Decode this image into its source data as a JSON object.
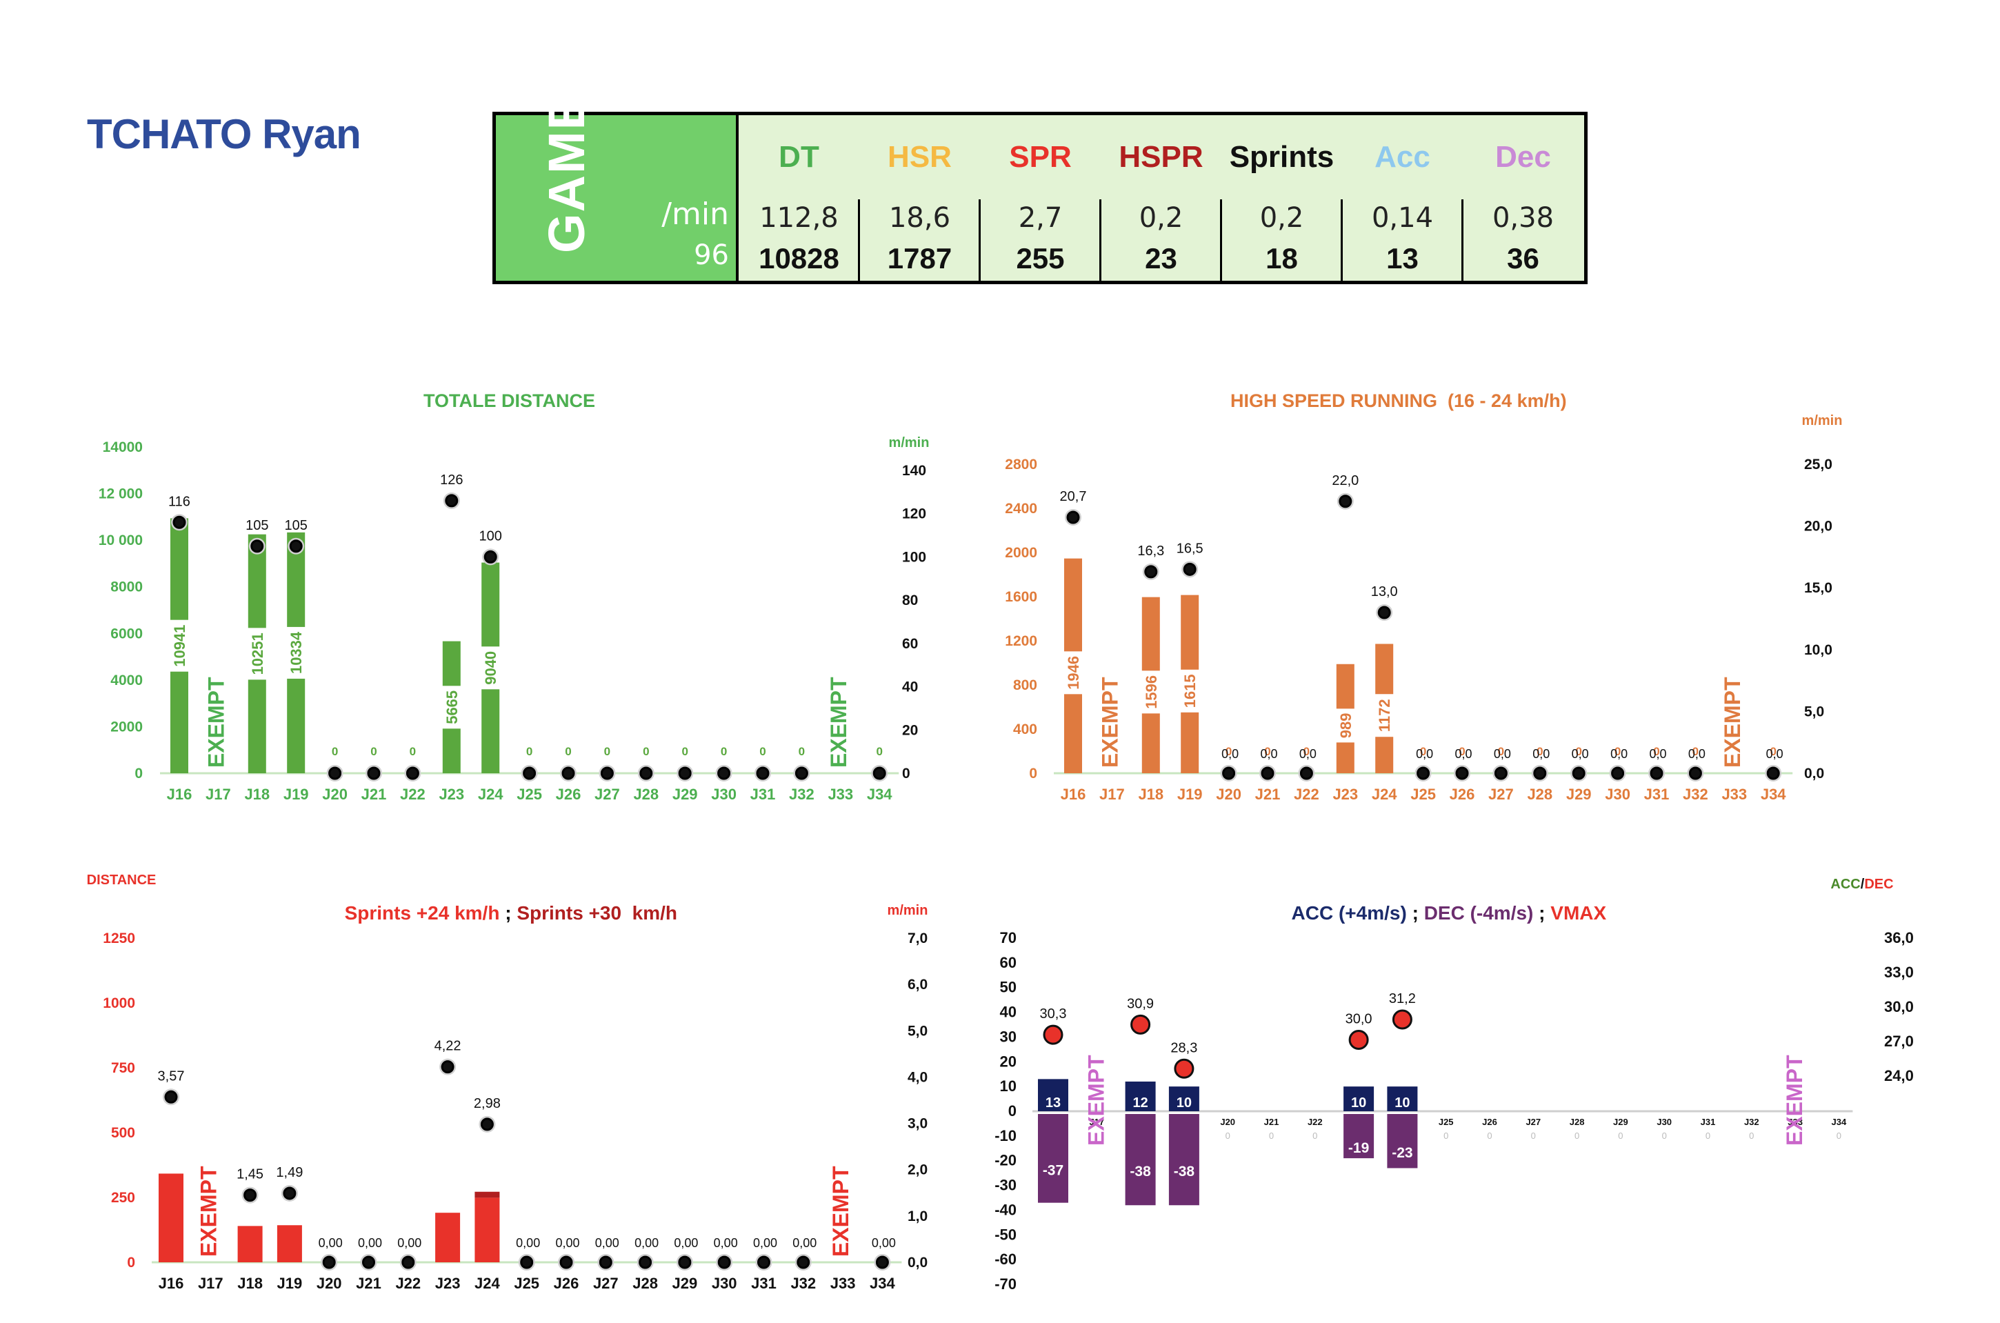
{
  "player": {
    "name": "TCHATO Ryan"
  },
  "summary": {
    "game_label": "GAME",
    "per_min_label": "/min",
    "minutes": "96",
    "columns": [
      {
        "label": "DT",
        "per_min": "112,8",
        "total": "10828",
        "color": "#4caf50"
      },
      {
        "label": "HSR",
        "per_min": "18,6",
        "total": "1787",
        "color": "#f5b942"
      },
      {
        "label": "SPR",
        "per_min": "2,7",
        "total": "255",
        "color": "#e8322a"
      },
      {
        "label": "HSPR",
        "per_min": "0,2",
        "total": "23",
        "color": "#b01f1f"
      },
      {
        "label": "Sprints",
        "per_min": "0,2",
        "total": "18",
        "color": "#111111"
      },
      {
        "label": "Acc",
        "per_min": "0,14",
        "total": "13",
        "color": "#8ec8ee"
      },
      {
        "label": "Dec",
        "per_min": "0,38",
        "total": "36",
        "color": "#c98ad6"
      }
    ]
  },
  "chart_data": [
    {
      "id": "distance",
      "type": "bar",
      "title": "TOTALE DISTANCE",
      "right_unit": "m/min",
      "exempt_label": "EXEMPT",
      "categories": [
        "J16",
        "J17",
        "J18",
        "J19",
        "J20",
        "J21",
        "J22",
        "J23",
        "J24",
        "J25",
        "J26",
        "J27",
        "J28",
        "J29",
        "J30",
        "J31",
        "J32",
        "J33",
        "J34"
      ],
      "exempt": [
        "J17",
        "J33"
      ],
      "bar_values": [
        10941,
        null,
        10251,
        10334,
        0,
        0,
        0,
        5665,
        9040,
        0,
        0,
        0,
        0,
        0,
        0,
        0,
        0,
        null,
        0
      ],
      "bar_labels": [
        "10941",
        "",
        "10251",
        "10334",
        "0",
        "0",
        "0",
        "5665",
        "9040",
        "0",
        "0",
        "0",
        "0",
        "0",
        "0",
        "0",
        "0",
        "",
        "0"
      ],
      "point_values": [
        116,
        null,
        105,
        105,
        0,
        0,
        0,
        126,
        100,
        0,
        0,
        0,
        0,
        0,
        0,
        0,
        0,
        null,
        0
      ],
      "point_labels": [
        "116",
        "",
        "105",
        "105",
        "",
        "",
        "",
        "126",
        "100",
        "",
        "",
        "",
        "",
        "",
        "",
        "",
        "",
        "",
        ""
      ],
      "y_left_ticks": [
        "0",
        "2000",
        "4000",
        "6000",
        "8000",
        "10 000",
        "12 000",
        "14000"
      ],
      "y_left_range": [
        0,
        14000
      ],
      "y_right_ticks": [
        "0",
        "20",
        "40",
        "60",
        "80",
        "100",
        "120",
        "140"
      ],
      "y_right_range": [
        0,
        140
      ]
    },
    {
      "id": "hsr",
      "type": "bar",
      "title": "HIGH SPEED RUNNING  (16 - 24 km/h)",
      "right_unit": "m/min",
      "exempt_label": "EXEMPT",
      "categories": [
        "J16",
        "J17",
        "J18",
        "J19",
        "J20",
        "J21",
        "J22",
        "J23",
        "J24",
        "J25",
        "J26",
        "J27",
        "J28",
        "J29",
        "J30",
        "J31",
        "J32",
        "J33",
        "J34"
      ],
      "exempt": [
        "J17",
        "J33"
      ],
      "bar_values": [
        1946,
        null,
        1596,
        1615,
        0,
        0,
        0,
        989,
        1172,
        0,
        0,
        0,
        0,
        0,
        0,
        0,
        0,
        null,
        0
      ],
      "bar_labels": [
        "1946",
        "",
        "1596",
        "1615",
        "0",
        "0",
        "0",
        "989",
        "1172",
        "0",
        "0",
        "0",
        "0",
        "0",
        "0",
        "0",
        "0",
        "",
        "0"
      ],
      "point_values": [
        20.7,
        null,
        16.3,
        16.5,
        0,
        0,
        0,
        22.0,
        13.0,
        0,
        0,
        0,
        0,
        0,
        0,
        0,
        0,
        null,
        0
      ],
      "point_labels": [
        "20,7",
        "",
        "16,3",
        "16,5",
        "0,0",
        "0,0",
        "0,0",
        "22,0",
        "13,0",
        "0,0",
        "0,0",
        "0,0",
        "0,0",
        "0,0",
        "0,0",
        "0,0",
        "0,0",
        "",
        "0,0"
      ],
      "y_left_ticks": [
        "0",
        "400",
        "800",
        "1200",
        "1600",
        "2000",
        "2400",
        "2800"
      ],
      "y_left_range": [
        0,
        2800
      ],
      "y_right_ticks": [
        "0,0",
        "5,0",
        "10,0",
        "15,0",
        "20,0",
        "25,0"
      ],
      "y_right_range": [
        0,
        25
      ]
    },
    {
      "id": "sprints",
      "type": "bar",
      "title": "Sprints +24 km/h",
      "title_sep": " ; ",
      "title_b": "Sprints +30  km/h",
      "left_unit": "DISTANCE",
      "right_unit": "m/min",
      "exempt_label": "EXEMPT",
      "categories": [
        "J16",
        "J17",
        "J18",
        "J19",
        "J20",
        "J21",
        "J22",
        "J23",
        "J24",
        "J25",
        "J26",
        "J27",
        "J28",
        "J29",
        "J30",
        "J31",
        "J32",
        "J33",
        "J34"
      ],
      "exempt": [
        "J17",
        "J33"
      ],
      "series": [
        {
          "values": [
            342,
            null,
            140,
            143,
            0,
            0,
            0,
            191,
            249,
            0,
            0,
            0,
            0,
            0,
            0,
            0,
            0,
            null,
            0
          ],
          "color": "#e8322a"
        },
        {
          "values": [
            0,
            null,
            0,
            0,
            0,
            0,
            0,
            0,
            23,
            0,
            0,
            0,
            0,
            0,
            0,
            0,
            0,
            null,
            0
          ],
          "color": "#b01f1f"
        }
      ],
      "point_values": [
        3.57,
        null,
        1.45,
        1.49,
        0,
        0,
        0,
        4.22,
        2.98,
        0,
        0,
        0,
        0,
        0,
        0,
        0,
        0,
        null,
        0
      ],
      "point_labels": [
        "3,57",
        "",
        "1,45",
        "1,49",
        "0,00",
        "0,00",
        "0,00",
        "4,22",
        "2,98",
        "0,00",
        "0,00",
        "0,00",
        "0,00",
        "0,00",
        "0,00",
        "0,00",
        "0,00",
        "",
        "0,00"
      ],
      "y_left_ticks": [
        "0",
        "250",
        "500",
        "750",
        "1000",
        "1250"
      ],
      "y_left_range": [
        0,
        1250
      ],
      "y_right_ticks": [
        "0,0",
        "1,0",
        "2,0",
        "3,0",
        "4,0",
        "5,0",
        "6,0",
        "7,0"
      ],
      "y_right_range": [
        0,
        7
      ]
    },
    {
      "id": "accdec",
      "type": "bar",
      "title_a": "ACC (+4m/s)",
      "title_sep1": " ; ",
      "title_b": "DEC (-4m/s)",
      "title_sep2": " ; ",
      "title_c": "VMAX",
      "legend_a": "ACC",
      "legend_sep": "/",
      "legend_b": "DEC",
      "exempt_label": "EXEMPT",
      "categories": [
        "J16",
        "J17",
        "J18",
        "J19",
        "J20",
        "J21",
        "J22",
        "J23",
        "J24",
        "J25",
        "J26",
        "J27",
        "J28",
        "J29",
        "J30",
        "J31",
        "J32",
        "J33",
        "J34"
      ],
      "exempt": [
        "J17",
        "J33"
      ],
      "acc_values": [
        13,
        null,
        12,
        10,
        0,
        0,
        0,
        10,
        10,
        0,
        0,
        0,
        0,
        0,
        0,
        0,
        0,
        null,
        0
      ],
      "dec_values": [
        -37,
        null,
        -38,
        -38,
        0,
        0,
        0,
        -19,
        -23,
        0,
        0,
        0,
        0,
        0,
        0,
        0,
        0,
        null,
        0
      ],
      "vmax_values": [
        30.3,
        null,
        30.9,
        28.3,
        null,
        null,
        null,
        30.0,
        31.2,
        null,
        null,
        null,
        null,
        null,
        null,
        null,
        null,
        null,
        null
      ],
      "vmax_labels": [
        "30,3",
        "",
        "30,9",
        "28,3",
        "",
        "",
        "",
        "30,0",
        "31,2",
        "",
        "",
        "",
        "",
        "",
        "",
        "",
        "",
        "",
        ""
      ],
      "y_left_ticks": [
        "-70",
        "-60",
        "-50",
        "-40",
        "-30",
        "-20",
        "-10",
        "0",
        "10",
        "20",
        "30",
        "40",
        "50",
        "60",
        "70"
      ],
      "y_left_range": [
        -70,
        70
      ],
      "y_right_ticks": [
        "24,0",
        "27,0",
        "30,0",
        "33,0",
        "36,0"
      ],
      "y_right_range": [
        24,
        36
      ]
    }
  ]
}
